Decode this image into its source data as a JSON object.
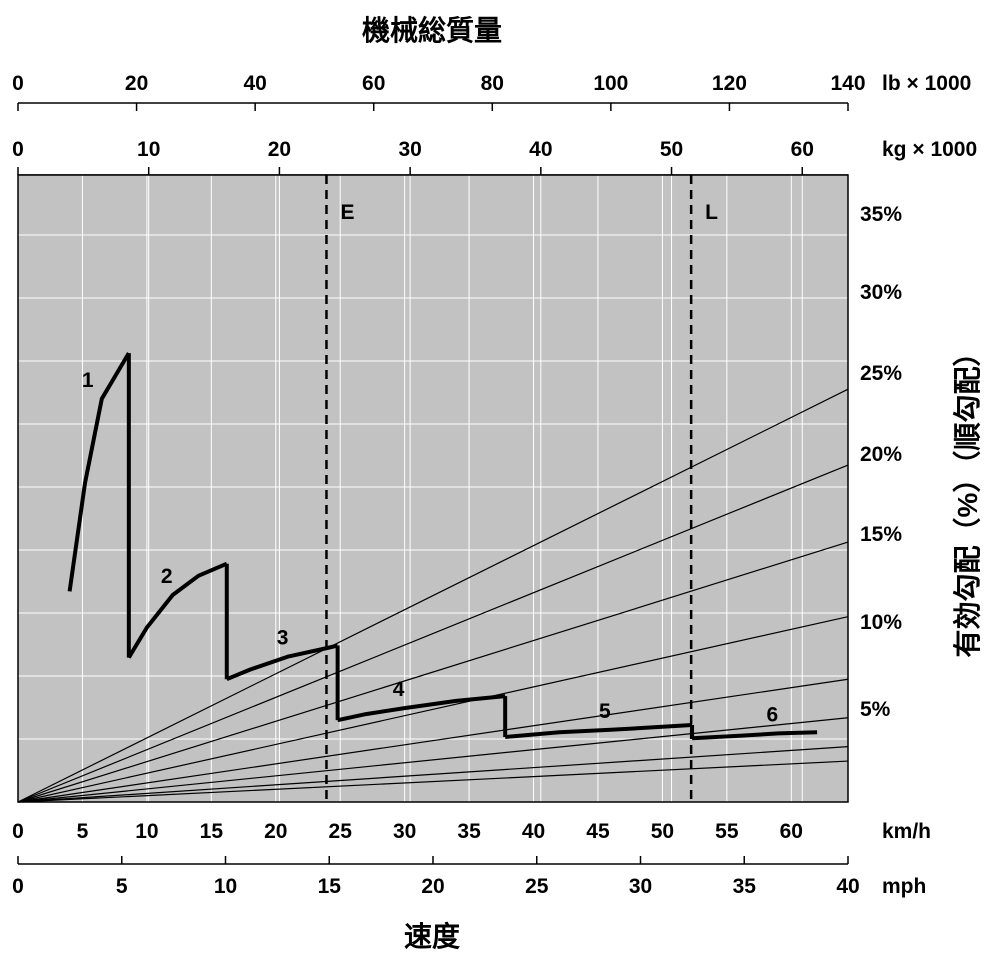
{
  "chart_data": {
    "type": "line",
    "title": "機械総質量",
    "xlabel": "速度",
    "ylabel": "有効勾配（%）（順勾配）",
    "axes": {
      "top_lb": {
        "unit": "lb × 1000",
        "ticks": [
          0,
          20,
          40,
          60,
          80,
          100,
          120,
          140
        ],
        "range": [
          0,
          140
        ]
      },
      "top_kg": {
        "unit": "kg × 1000",
        "ticks": [
          0,
          10,
          20,
          30,
          40,
          50,
          60
        ],
        "range": [
          0,
          63.5
        ]
      },
      "bottom_kmh": {
        "unit": "km/h",
        "ticks": [
          0,
          5,
          10,
          15,
          20,
          25,
          30,
          35,
          40,
          45,
          50,
          55,
          60
        ],
        "range": [
          0,
          64.4
        ]
      },
      "bottom_mph": {
        "unit": "mph",
        "ticks": [
          0,
          5,
          10,
          15,
          20,
          25,
          30,
          35,
          40
        ],
        "range": [
          0,
          40
        ]
      },
      "grade_labels": [
        "35%",
        "30%",
        "25%",
        "20%",
        "15%",
        "10%",
        "5%"
      ]
    },
    "grade_lines": [
      {
        "grade": 35,
        "end_level": 34.3
      },
      {
        "grade": 30,
        "end_level": 28.0
      },
      {
        "grade": 25,
        "end_level": 21.6
      },
      {
        "grade": 20,
        "end_level": 15.4
      },
      {
        "grade": 15,
        "end_level": 10.2
      },
      {
        "grade": 10,
        "end_level": 7.0
      },
      {
        "grade": 5,
        "end_level": 3.4
      },
      {
        "grade": 0,
        "end_level": 4.6
      }
    ],
    "markers": [
      {
        "label": "E",
        "mass_kg": 23.6
      },
      {
        "label": "L",
        "mass_kg": 51.5
      }
    ],
    "series": [
      {
        "name": "1",
        "points": [
          [
            4.0,
            17.5
          ],
          [
            5.2,
            26.5
          ],
          [
            6.5,
            33.5
          ],
          [
            8.6,
            37.3
          ]
        ]
      },
      {
        "name": "2",
        "points": [
          [
            8.6,
            12.0
          ],
          [
            10.0,
            14.5
          ],
          [
            12.0,
            17.2
          ],
          [
            14.0,
            18.8
          ],
          [
            16.2,
            19.8
          ]
        ]
      },
      {
        "name": "3",
        "points": [
          [
            16.2,
            10.2
          ],
          [
            18.0,
            11.0
          ],
          [
            21.0,
            12.1
          ],
          [
            24.0,
            12.8
          ],
          [
            24.8,
            13.0
          ]
        ]
      },
      {
        "name": "4",
        "points": [
          [
            24.8,
            6.8
          ],
          [
            27.0,
            7.3
          ],
          [
            30.0,
            7.8
          ],
          [
            34.0,
            8.4
          ],
          [
            37.8,
            8.8
          ]
        ]
      },
      {
        "name": "5",
        "points": [
          [
            37.8,
            5.4
          ],
          [
            42.0,
            5.8
          ],
          [
            46.0,
            6.0
          ],
          [
            52.3,
            6.4
          ]
        ]
      },
      {
        "name": "6",
        "points": [
          [
            52.3,
            5.3
          ],
          [
            56.0,
            5.5
          ],
          [
            59.0,
            5.7
          ],
          [
            62.0,
            5.8
          ]
        ]
      }
    ],
    "y_range": [
      0,
      52.1
    ],
    "grid": true
  }
}
